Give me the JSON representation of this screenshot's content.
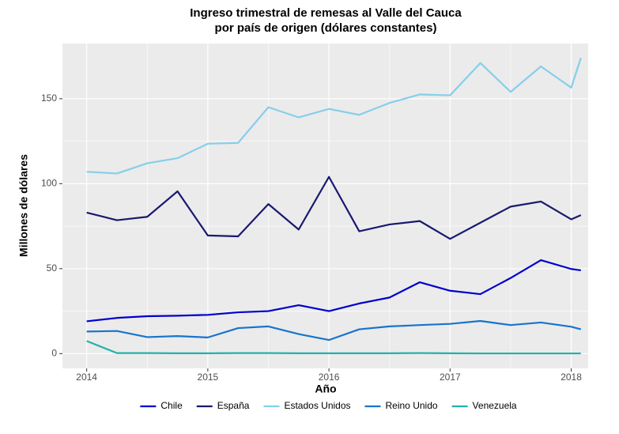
{
  "chart_data": {
    "type": "line",
    "title": [
      "Ingreso trimestral de remesas al Valle del Cauca",
      "por país de origen (dólares constantes)"
    ],
    "x_label": "Año",
    "y_label": "Millones de dólares",
    "x": [
      2014,
      2014.25,
      2014.5,
      2014.75,
      2015,
      2015.25,
      2015.5,
      2015.75,
      2016,
      2016.25,
      2016.5,
      2016.75,
      2017,
      2017.25,
      2017.5,
      2017.75,
      2018,
      2018.08
    ],
    "series": [
      {
        "name": "Chile",
        "color": "#0000cd",
        "values": [
          19,
          21,
          22,
          22.3,
          22.8,
          24.3,
          25,
          28.5,
          25,
          29.5,
          33,
          42,
          37,
          35,
          44.5,
          55,
          49.8,
          49
        ]
      },
      {
        "name": "España",
        "color": "#191970",
        "values": [
          83,
          78.5,
          80.5,
          95.5,
          69.5,
          69,
          88,
          73,
          104,
          72,
          76,
          78,
          67.5,
          77,
          86.5,
          89.5,
          79,
          81.5
        ]
      },
      {
        "name": "Estados Unidos",
        "color": "#87ceeb",
        "values": [
          107,
          106,
          112,
          115,
          123.5,
          124,
          145,
          139,
          144,
          140.5,
          147.5,
          152.5,
          152,
          171,
          154,
          169,
          156.5,
          174
        ]
      },
      {
        "name": "Reino Unido",
        "color": "#1874cd",
        "values": [
          13,
          13.3,
          9.7,
          10.3,
          9.5,
          15,
          16,
          11.5,
          8,
          14.3,
          16,
          16.8,
          17.5,
          19.2,
          16.8,
          18.3,
          15.8,
          14.3
        ]
      },
      {
        "name": "Venezuela",
        "color": "#20b2aa",
        "values": [
          7.4,
          0.3,
          0.3,
          0.2,
          0.2,
          0.3,
          0.3,
          0.2,
          0.2,
          0.2,
          0.2,
          0.3,
          0.2,
          0.1,
          0.1,
          0.1,
          0.1,
          0.1
        ]
      }
    ],
    "xlim": [
      2013.8,
      2018.14
    ],
    "xticks": [
      2014,
      2015,
      2016,
      2017,
      2018
    ],
    "ylim": [
      -8.7,
      182.5
    ],
    "yticks": [
      0,
      50,
      100,
      150
    ],
    "grid": true,
    "legend": "bottom"
  }
}
